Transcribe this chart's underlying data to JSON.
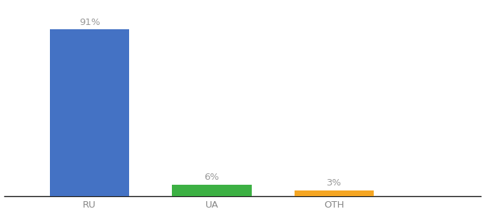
{
  "categories": [
    "RU",
    "UA",
    "OTH"
  ],
  "values": [
    91,
    6,
    3
  ],
  "bar_colors": [
    "#4472c4",
    "#3cb043",
    "#f5a623"
  ],
  "labels": [
    "91%",
    "6%",
    "3%"
  ],
  "background_color": "#ffffff",
  "label_color": "#999999",
  "label_fontsize": 9.5,
  "tick_fontsize": 9.5,
  "tick_color": "#888888",
  "ylim": [
    0,
    105
  ],
  "bar_width": 0.65,
  "x_positions": [
    1,
    2,
    3
  ],
  "xlim": [
    0.3,
    4.2
  ]
}
